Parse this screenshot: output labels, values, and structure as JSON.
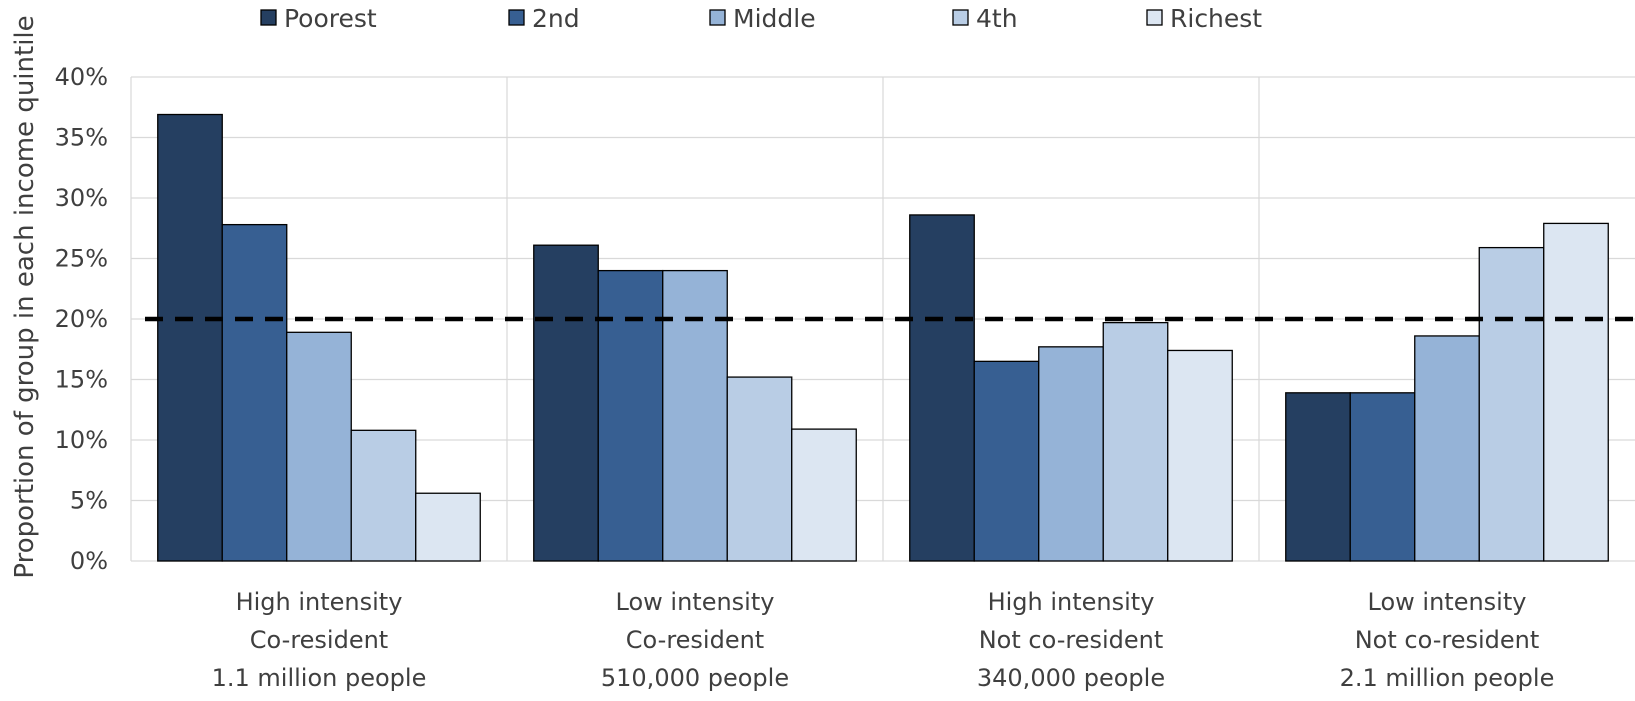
{
  "colors": {
    "series": [
      "#253f61",
      "#375f92",
      "#95b3d7",
      "#b9cde5",
      "#dce6f2"
    ],
    "grid": "#d9d9d9",
    "reference_line": "#000000",
    "bar_outline": "#000000",
    "text": "#3f3f3f"
  },
  "chart_data": {
    "type": "bar",
    "ylabel": "Proportion of group in each income quintile",
    "ylim": [
      0,
      40
    ],
    "y_ticks": [
      "0%",
      "5%",
      "10%",
      "15%",
      "20%",
      "25%",
      "30%",
      "35%",
      "40%"
    ],
    "grid": true,
    "legend_position": "top",
    "reference_line": {
      "y": 20,
      "style": "dashed"
    },
    "categories": [
      [
        "High intensity",
        "Co-resident",
        "1.1 million people"
      ],
      [
        "Low intensity",
        "Co-resident",
        "510,000 people"
      ],
      [
        "High intensity",
        "Not co-resident",
        "340,000 people"
      ],
      [
        "Low intensity",
        "Not co-resident",
        "2.1 million people"
      ]
    ],
    "series": [
      {
        "name": "Poorest",
        "values": [
          36.9,
          26.1,
          28.6,
          13.9
        ]
      },
      {
        "name": "2nd",
        "values": [
          27.8,
          24.0,
          16.5,
          13.9
        ]
      },
      {
        "name": "Middle",
        "values": [
          18.9,
          24.0,
          17.7,
          18.6
        ]
      },
      {
        "name": "4th",
        "values": [
          10.8,
          15.2,
          19.7,
          25.9
        ]
      },
      {
        "name": "Richest",
        "values": [
          5.6,
          10.9,
          17.4,
          27.9
        ]
      }
    ]
  }
}
